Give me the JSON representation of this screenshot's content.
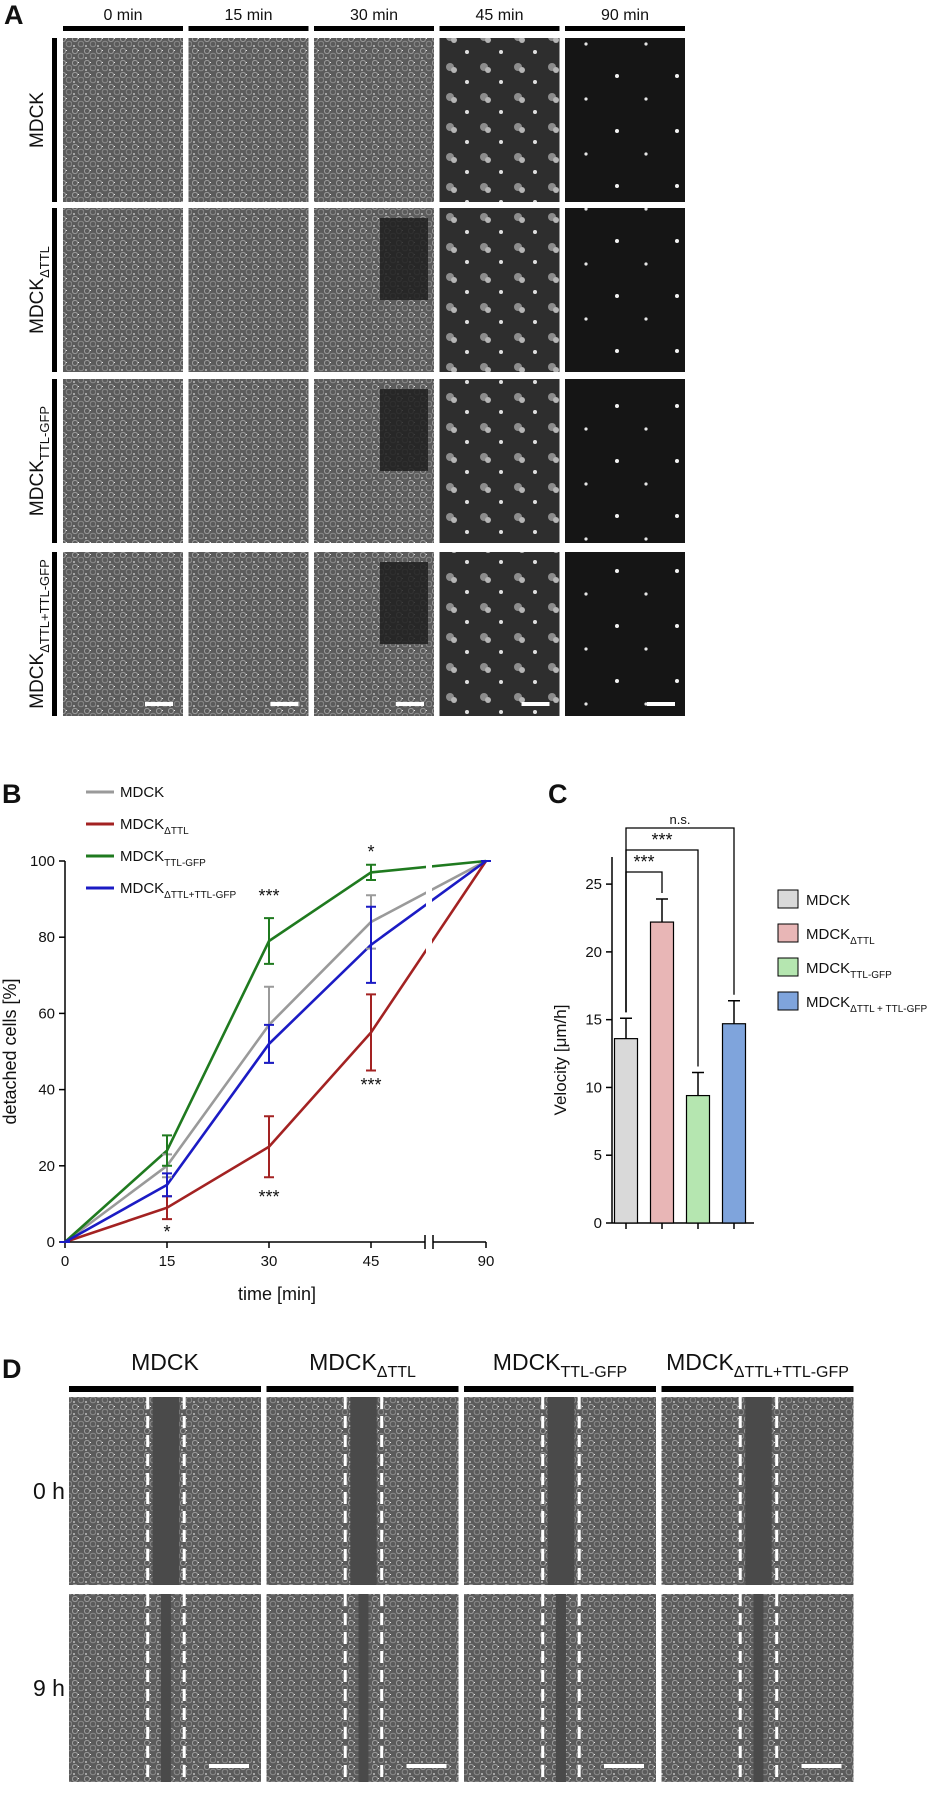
{
  "panel_a": {
    "label": "A",
    "columns": [
      "0 min",
      "15 min",
      "30 min",
      "45 min",
      "90 min"
    ],
    "rows": [
      {
        "text": "MDCK"
      },
      {
        "text": "MDCK",
        "sub": "ΔTTL"
      },
      {
        "text": "MDCK",
        "sub": "TTL-GFP"
      },
      {
        "text": "MDCK",
        "sub": "ΔTTL+TTL-GFP"
      }
    ]
  },
  "chart_data": [
    {
      "type": "line",
      "panel_label": "B",
      "xlabel": "time [min]",
      "ylabel": "detached cells [%]",
      "categories": [
        "0",
        "15",
        "30",
        "45",
        "90"
      ],
      "axis_break": true,
      "ylim": [
        0,
        100
      ],
      "yticks": [
        0,
        20,
        40,
        60,
        80,
        100
      ],
      "grid": false,
      "legend": "top-left",
      "series": [
        {
          "name": "MDCK",
          "color": "#9a9a9a",
          "values": [
            0,
            20,
            57,
            84,
            100
          ],
          "errors": [
            0,
            3,
            10,
            7,
            0
          ]
        },
        {
          "name": "MDCK",
          "name_sub": "ΔTTL",
          "color": "#a32222",
          "values": [
            0,
            9,
            25,
            55,
            100
          ],
          "errors": [
            0,
            3,
            8,
            10,
            0
          ]
        },
        {
          "name": "MDCK",
          "name_sub": "TTL-GFP",
          "color": "#1f7a1f",
          "values": [
            0,
            24,
            79,
            97,
            100
          ],
          "errors": [
            0,
            4,
            6,
            2,
            0
          ]
        },
        {
          "name": "MDCK",
          "name_sub": "ΔTTL+TTL-GFP",
          "color": "#1b1bc4",
          "values": [
            0,
            15,
            52,
            78,
            100
          ],
          "errors": [
            0,
            3,
            5,
            10,
            0
          ]
        }
      ],
      "annotations": [
        "*",
        "***",
        "***",
        "*",
        "***"
      ]
    },
    {
      "type": "bar",
      "panel_label": "C",
      "ylabel": "Velocity [μm/h]",
      "ylim": [
        0,
        27
      ],
      "yticks": [
        0,
        5,
        10,
        15,
        20,
        25
      ],
      "legend": "right",
      "series": [
        {
          "name": "MDCK",
          "color": "#d9d9d9",
          "values": [
            13.6
          ],
          "errors": [
            1.5
          ]
        },
        {
          "name": "MDCK",
          "name_sub": "ΔTTL",
          "color": "#e8b6b6",
          "values": [
            22.2
          ],
          "errors": [
            1.7
          ]
        },
        {
          "name": "MDCK",
          "name_sub": "TTL-GFP",
          "color": "#b5e6b0",
          "values": [
            9.4
          ],
          "errors": [
            1.7
          ]
        },
        {
          "name": "MDCK",
          "name_sub": "ΔTTL + TTL-GFP",
          "color": "#7fa4dc",
          "values": [
            14.7
          ],
          "errors": [
            1.7
          ]
        }
      ],
      "significance": [
        "***",
        "***",
        "n.s."
      ]
    }
  ],
  "panel_d": {
    "label": "D",
    "columns": [
      {
        "text": "MDCK"
      },
      {
        "text": "MDCK",
        "sub": "ΔTTL"
      },
      {
        "text": "MDCK",
        "sub": "TTL-GFP"
      },
      {
        "text": "MDCK",
        "sub": "ΔTTL+TTL-GFP"
      }
    ],
    "rows": [
      "0 h",
      "9 h"
    ]
  }
}
